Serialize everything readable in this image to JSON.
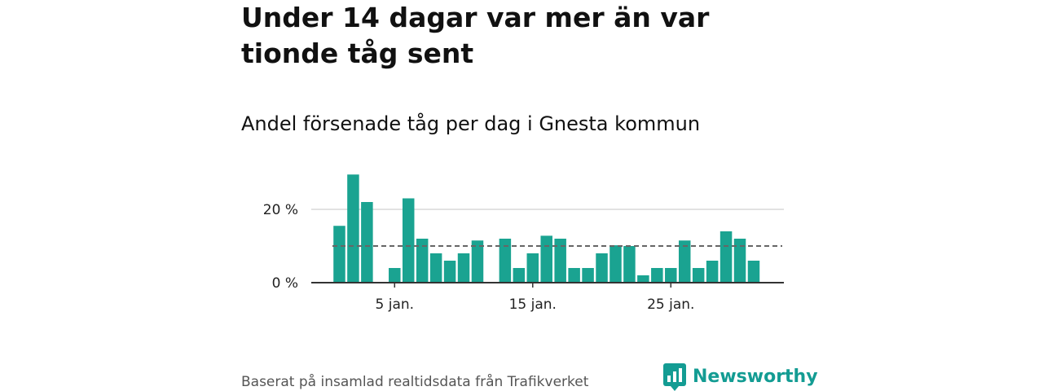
{
  "header": {
    "title": "Under 14 dagar var mer än var tionde tåg sent",
    "subtitle": "Andel försenade tåg per dag i Gnesta kommun"
  },
  "footer": {
    "source": "Baserat på insamlad realtidsdata från Trafikverket",
    "brand_name": "Newsworthy",
    "brand_icon": "newsworthy-logo-icon",
    "brand_color": "#139c93"
  },
  "colors": {
    "bar": "#1aa391",
    "gridline": "#d9d9d9",
    "axis": "#333333",
    "reference_line": "#666666"
  },
  "chart_data": {
    "type": "bar",
    "title": "Andel försenade tåg per dag i Gnesta kommun",
    "xlabel": "",
    "ylabel": "",
    "x": [
      1,
      2,
      3,
      4,
      5,
      6,
      7,
      8,
      9,
      10,
      11,
      12,
      13,
      14,
      15,
      16,
      17,
      18,
      19,
      20,
      21,
      22,
      23,
      24,
      25,
      26,
      27,
      28,
      29,
      30,
      31
    ],
    "values": [
      15.5,
      29.5,
      22,
      null,
      4,
      23,
      12,
      8,
      6,
      8,
      11.5,
      null,
      12,
      4,
      8,
      12.8,
      12,
      4,
      4,
      8,
      10.2,
      10,
      2,
      4,
      4,
      11.5,
      4,
      6,
      14,
      12,
      6
    ],
    "ylim": [
      0,
      30
    ],
    "y_ticks": [
      0,
      20
    ],
    "y_tick_labels": [
      "0 %",
      "20 %"
    ],
    "x_ticks": [
      5,
      15,
      25
    ],
    "x_tick_labels": [
      "5 jan.",
      "15 jan.",
      "25 jan."
    ],
    "reference_line": {
      "value": 10,
      "style": "dashed"
    },
    "grid": true,
    "legend": "none"
  }
}
